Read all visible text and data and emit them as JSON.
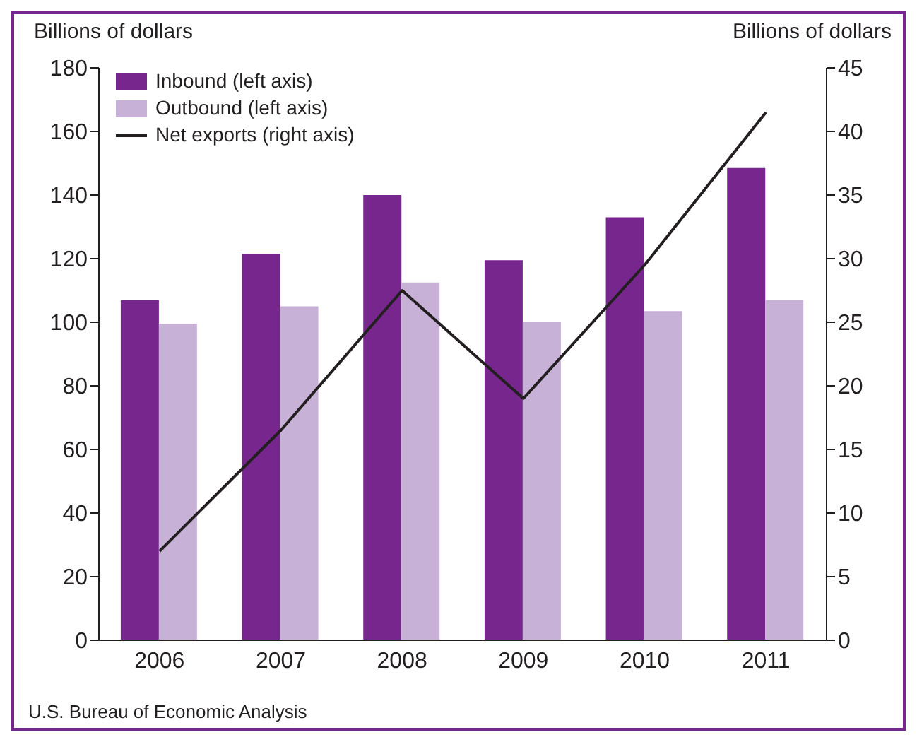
{
  "chart_data": {
    "type": "bar",
    "ylabel": "Billions of dollars",
    "y2label": "Billions of dollars",
    "categories": [
      "2006",
      "2007",
      "2008",
      "2009",
      "2010",
      "2011"
    ],
    "series": [
      {
        "name": "Inbound (left axis)",
        "color": "#76268c",
        "values": [
          107,
          121.5,
          140,
          119.5,
          133,
          148.5
        ]
      },
      {
        "name": "Outbound (left axis)",
        "color": "#c8b1d6",
        "values": [
          99.5,
          105,
          112.5,
          100,
          103.5,
          107
        ]
      },
      {
        "name": "Net exports (right axis)",
        "type": "line",
        "axis": "y2",
        "color": "#231f20",
        "values": [
          7,
          16.5,
          27.5,
          19,
          29.5,
          41.5
        ]
      }
    ],
    "ylim": [
      0,
      180
    ],
    "yticks": [
      0,
      20,
      40,
      60,
      80,
      100,
      120,
      140,
      160,
      180
    ],
    "y2lim": [
      0,
      45
    ],
    "y2ticks": [
      0,
      5,
      10,
      15,
      20,
      25,
      30,
      35,
      40,
      45
    ],
    "legend": "top left",
    "grid": false,
    "marker": "none",
    "annotations": [
      "U.S. Bureau of Economic Analysis"
    ]
  }
}
